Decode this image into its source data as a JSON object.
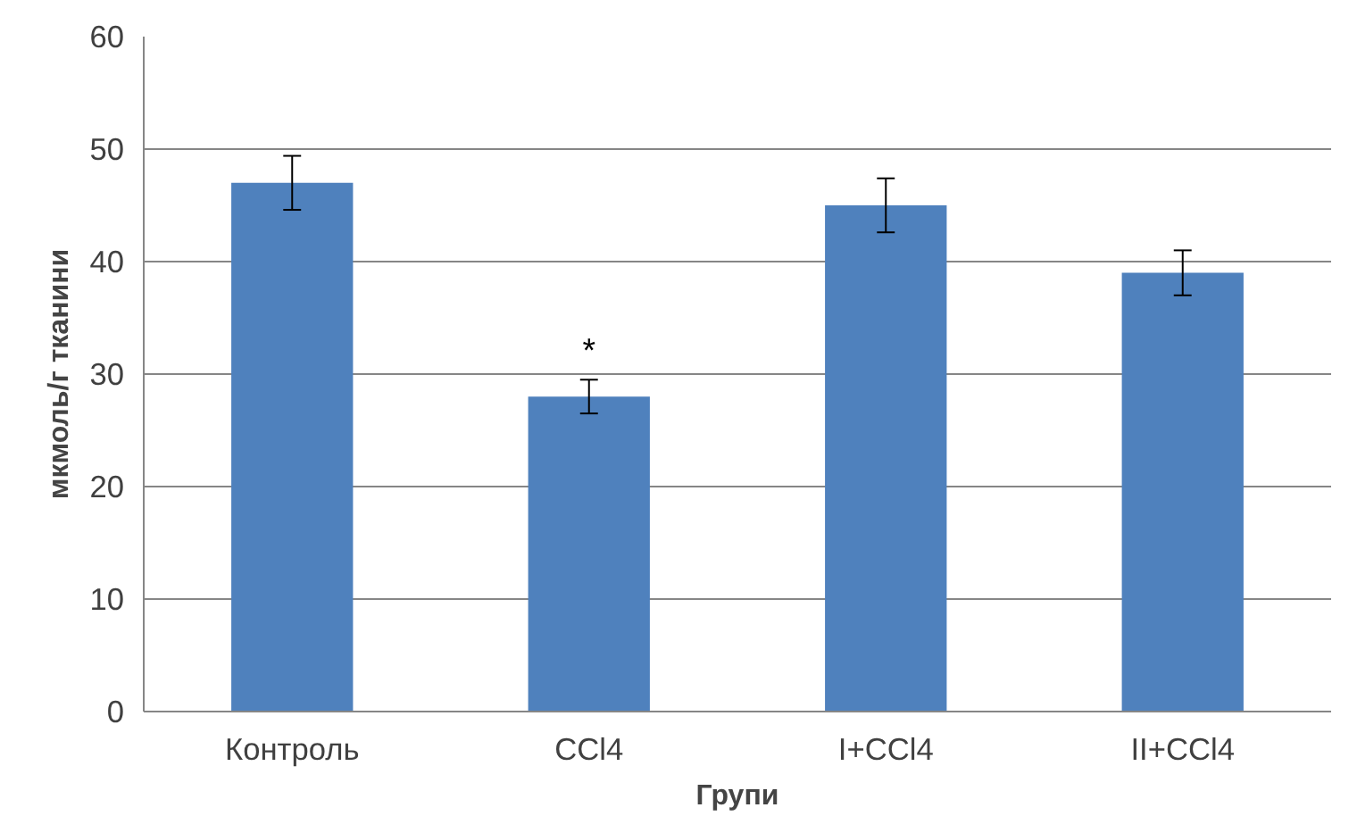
{
  "chart_data": {
    "type": "bar",
    "xlabel": "Групи",
    "ylabel": "мкмоль/г тканини",
    "categories": [
      "Контроль",
      "CCl4",
      "I+CCl4",
      "II+CCl4"
    ],
    "values": [
      47,
      28,
      45,
      39
    ],
    "errors": [
      2.4,
      1.5,
      2.4,
      2
    ],
    "color": "#4f81bd",
    "ylim": [
      0,
      60
    ],
    "yticks": [
      0,
      10,
      20,
      30,
      40,
      50,
      60
    ],
    "grid": "y",
    "annotations": [
      {
        "text": "*",
        "x": "CCl4",
        "y": 29.5
      }
    ]
  }
}
